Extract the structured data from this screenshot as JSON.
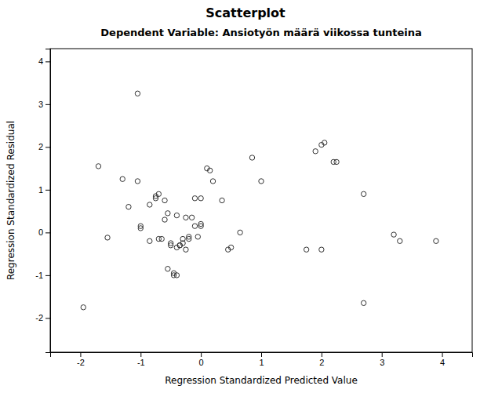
{
  "chart_data": {
    "type": "scatter",
    "title": "Scatterplot",
    "subtitle": "Dependent Variable: Ansiotyön määrä viikossa tunteina",
    "xlabel": "Regression Standardized Predicted Value",
    "ylabel": "Regression Standardized Residual",
    "x": [
      -1.7,
      -1.05,
      -1.05,
      -1.55,
      -1.3,
      -1.2,
      -1.0,
      -1.0,
      -0.85,
      -0.85,
      -0.75,
      -0.75,
      -0.7,
      -0.7,
      -0.65,
      -0.6,
      -0.6,
      -0.55,
      -0.55,
      -0.5,
      -0.5,
      -0.45,
      -0.45,
      -0.4,
      -0.4,
      -0.4,
      -0.35,
      -0.35,
      -0.3,
      -0.3,
      -0.25,
      -0.25,
      -0.2,
      -0.2,
      -0.15,
      -0.1,
      -0.1,
      -0.05,
      0.0,
      0.0,
      0.0,
      0.1,
      0.15,
      0.2,
      0.35,
      0.45,
      0.5,
      0.65,
      0.85,
      1.0,
      1.75,
      1.9,
      2.0,
      2.2,
      2.7,
      3.2,
      3.9,
      -1.95,
      2.0,
      2.05,
      2.25,
      2.7,
      3.3
    ],
    "y": [
      1.55,
      1.2,
      3.25,
      -0.12,
      1.25,
      0.6,
      0.1,
      0.15,
      0.65,
      -0.2,
      0.8,
      0.85,
      0.9,
      -0.15,
      -0.15,
      0.75,
      0.3,
      0.45,
      -0.85,
      -0.3,
      -0.25,
      -0.95,
      -1.0,
      -1.0,
      -0.35,
      0.4,
      -0.3,
      -0.3,
      -0.25,
      -0.15,
      -0.4,
      0.35,
      -0.15,
      -0.1,
      0.35,
      0.8,
      0.15,
      -0.1,
      0.8,
      0.15,
      0.2,
      1.5,
      1.45,
      1.2,
      0.75,
      -0.4,
      -0.35,
      0.0,
      1.75,
      1.2,
      -0.4,
      1.9,
      2.05,
      1.65,
      0.9,
      -0.05,
      -0.2,
      -1.75,
      -0.4,
      2.1,
      1.65,
      -1.65,
      -0.2
    ],
    "xlim": [
      -2.5,
      4.5
    ],
    "ylim": [
      -2.8,
      4.3
    ],
    "xticks": [
      -2,
      -1,
      0,
      1,
      2,
      3,
      4
    ],
    "yticks": [
      -2,
      -1,
      0,
      1,
      2,
      3,
      4
    ],
    "color": "#333333",
    "grid": false
  }
}
